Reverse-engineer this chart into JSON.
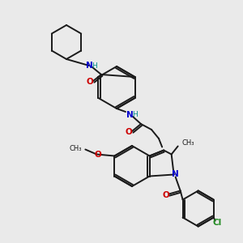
{
  "background_color": "#eaeaea",
  "bond_color": "#1a1a1a",
  "atom_colors": {
    "N": "#0000cc",
    "O": "#cc0000",
    "H": "#008b8b",
    "Cl": "#228B22",
    "C": "#1a1a1a"
  },
  "figsize": [
    3.0,
    3.0
  ],
  "dpi": 100,
  "scale": 1.0
}
